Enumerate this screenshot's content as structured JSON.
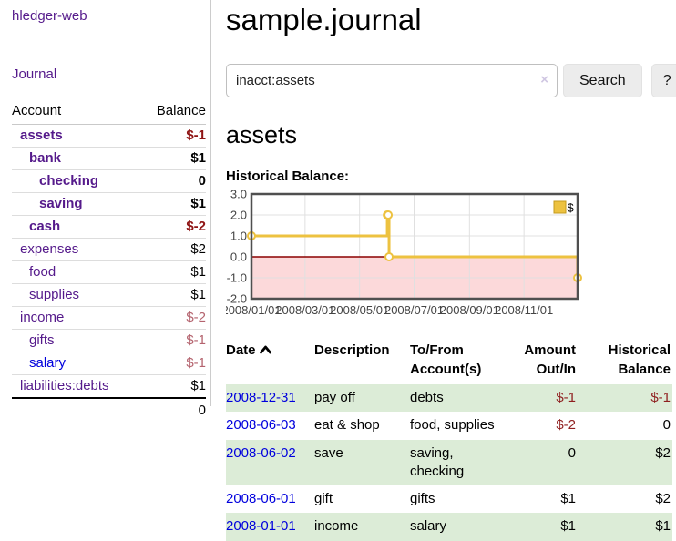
{
  "app": {
    "title": "hledger-web"
  },
  "sidebar": {
    "nav_journal": "Journal",
    "accounts_table": {
      "headers": {
        "account": "Account",
        "balance": "Balance"
      },
      "rows": [
        {
          "account": "assets",
          "depth": 1,
          "row_class": "d1",
          "link_class": "acct bold",
          "balance": "$-1",
          "bal_class": "bal bold neg-strong"
        },
        {
          "account": "bank",
          "depth": 2,
          "row_class": "d2",
          "link_class": "acct bold",
          "balance": "$1",
          "bal_class": "bal bold"
        },
        {
          "account": "checking",
          "depth": 3,
          "row_class": "d3",
          "link_class": "acct bold",
          "balance": "0",
          "bal_class": "bal bold"
        },
        {
          "account": "saving",
          "depth": 3,
          "row_class": "d3",
          "link_class": "acct bold",
          "balance": "$1",
          "bal_class": "bal bold"
        },
        {
          "account": "cash",
          "depth": 2,
          "row_class": "d2",
          "link_class": "acct bold",
          "balance": "$-2",
          "bal_class": "bal bold neg-strong"
        },
        {
          "account": "expenses",
          "depth": 1,
          "row_class": "d1",
          "link_class": "acct",
          "balance": "$2",
          "bal_class": "bal"
        },
        {
          "account": "food",
          "depth": 2,
          "row_class": "d2",
          "link_class": "acct",
          "balance": "$1",
          "bal_class": "bal"
        },
        {
          "account": "supplies",
          "depth": 2,
          "row_class": "d2",
          "link_class": "acct",
          "balance": "$1",
          "bal_class": "bal"
        },
        {
          "account": "income",
          "depth": 1,
          "row_class": "d1",
          "link_class": "acct",
          "balance": "$-2",
          "bal_class": "bal neg-faded"
        },
        {
          "account": "gifts",
          "depth": 2,
          "row_class": "d2",
          "link_class": "acct",
          "balance": "$-1",
          "bal_class": "bal neg-faded"
        },
        {
          "account": "salary",
          "depth": 2,
          "row_class": "d2",
          "link_class": "acct blue",
          "balance": "$-1",
          "bal_class": "bal neg-faded"
        },
        {
          "account": "liabilities:debts",
          "depth": 1,
          "row_class": "d1",
          "link_class": "acct",
          "balance": "$1",
          "bal_class": "bal"
        }
      ],
      "total": "0"
    }
  },
  "main": {
    "title": "sample.journal",
    "search": {
      "value": "inacct:assets",
      "clear_icon": "×",
      "button_label": "Search",
      "help_label": "?"
    },
    "account_heading": "assets",
    "chart_heading": "Historical Balance:"
  },
  "chart_data": {
    "type": "line",
    "title": "Historical Balance:",
    "step": true,
    "series_name": "$",
    "legend": {
      "label": "$",
      "position": "top-right"
    },
    "x": [
      "2008-01-01",
      "2008-06-01",
      "2008-06-02",
      "2008-06-03",
      "2008-12-31"
    ],
    "y": [
      1,
      2,
      2,
      0,
      -1
    ],
    "xlim": [
      "2008-01-01",
      "2008-12-31"
    ],
    "ylim": [
      -2,
      3
    ],
    "y_ticks": [
      "3.0",
      "2.0",
      "1.0",
      "0.0",
      "-1.0",
      "-2.0"
    ],
    "x_ticks": [
      "2008/01/01",
      "2008/03/01",
      "2008/05/01",
      "2008/07/01",
      "2008/09/01",
      "2008/11/01"
    ],
    "x_tick_dates": [
      "2008-01-01",
      "2008-03-01",
      "2008-05-01",
      "2008-07-01",
      "2008-09-01",
      "2008-11-01"
    ],
    "grid": true,
    "colors": {
      "line": "#edc240",
      "marker_fill": "#ffffff",
      "legend_border": "#c49b1e",
      "zero_line": "#8b0000",
      "negative_fill": "#fcd9da",
      "grid": "#e0e0e0",
      "border": "#4f4f4f",
      "tick_label": "#444444"
    }
  },
  "register_table": {
    "headers": {
      "date": "Date",
      "description": "Description",
      "accounts": "To/From Account(s)",
      "amount": "Amount Out/In",
      "balance": "Historical Balance"
    },
    "rows": [
      {
        "row_class": "stripe",
        "date": "2008-12-31",
        "description": "pay off",
        "accounts": "debts",
        "amount": "$-1",
        "amount_class": "r amt-neg",
        "balance": "$-1",
        "balance_class": "r amt-neg"
      },
      {
        "row_class": "",
        "date": "2008-06-03",
        "description": "eat & shop",
        "accounts": "food, supplies",
        "amount": "$-2",
        "amount_class": "r amt-neg",
        "balance": "0",
        "balance_class": "r"
      },
      {
        "row_class": "stripe",
        "date": "2008-06-02",
        "description": "save",
        "accounts": "saving, checking",
        "amount": "0",
        "amount_class": "r",
        "balance": "$2",
        "balance_class": "r"
      },
      {
        "row_class": "",
        "date": "2008-06-01",
        "description": "gift",
        "accounts": "gifts",
        "amount": "$1",
        "amount_class": "r",
        "balance": "$2",
        "balance_class": "r"
      },
      {
        "row_class": "stripe",
        "date": "2008-01-01",
        "description": "income",
        "accounts": "salary",
        "amount": "$1",
        "amount_class": "r",
        "balance": "$1",
        "balance_class": "r"
      }
    ]
  },
  "colors": {
    "link_purple": "#551a8b",
    "link_blue": "#0000dd",
    "negative_strong": "#8f1414",
    "negative_faded": "#b4636e",
    "row_stripe_green": "#dcecd7",
    "button_bg": "#ececec"
  }
}
